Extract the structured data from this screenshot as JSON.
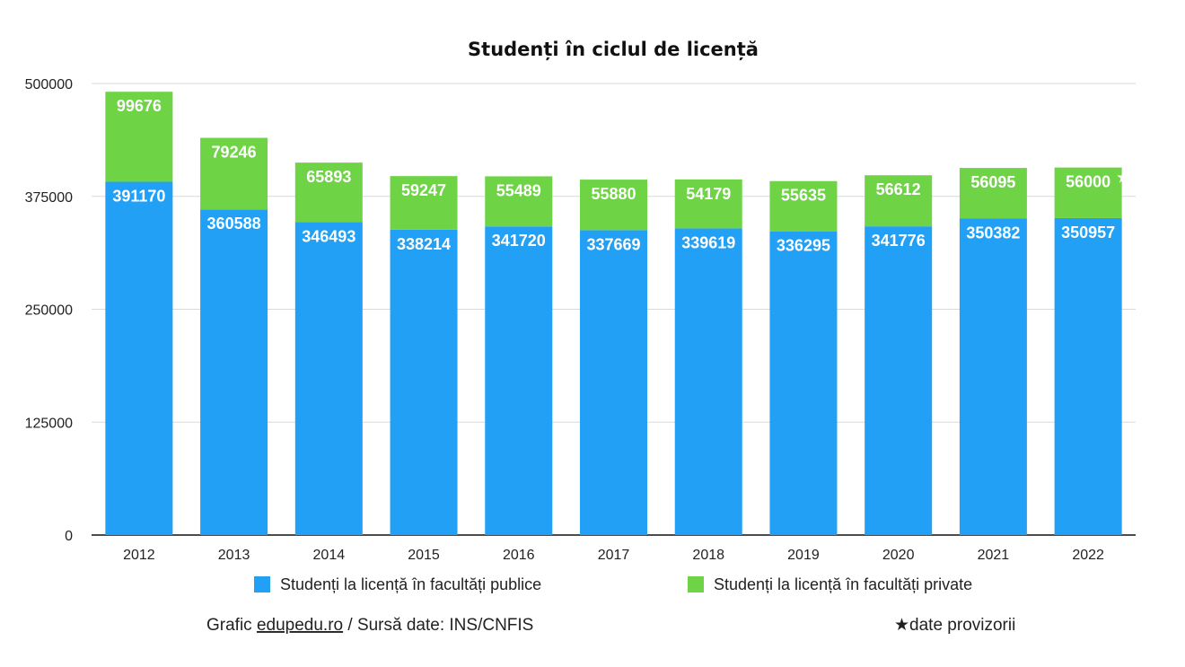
{
  "chart_data": {
    "type": "bar",
    "stacked": true,
    "title": "Studenți în ciclul de licență",
    "categories": [
      "2012",
      "2013",
      "2014",
      "2015",
      "2016",
      "2017",
      "2018",
      "2019",
      "2020",
      "2021",
      "2022"
    ],
    "series": [
      {
        "name": "Studenți la licență în facultăți publice",
        "color": "#21a0f5",
        "values": [
          391170,
          360588,
          346493,
          338214,
          341720,
          337669,
          339619,
          336295,
          341776,
          350382,
          350957
        ]
      },
      {
        "name": "Studenți la licență în facultăți private",
        "color": "#6ed445",
        "values": [
          99676,
          79246,
          65893,
          59247,
          55489,
          55880,
          54179,
          55635,
          56612,
          56095,
          56000
        ]
      }
    ],
    "ylim": [
      0,
      500000
    ],
    "yticks": [
      "0",
      "125000",
      "250000",
      "375000",
      "500000"
    ],
    "grid": true,
    "legend_position": "bottom",
    "annotations": {
      "provisional_marker": "★",
      "provisional_category": "2022"
    }
  },
  "footer": {
    "credit_prefix": "Grafic ",
    "credit_link": "edupedu.ro",
    "credit_suffix": " / Sursă date: INS/CNFIS",
    "note_marker": "★",
    "note_text": "date provizorii"
  }
}
